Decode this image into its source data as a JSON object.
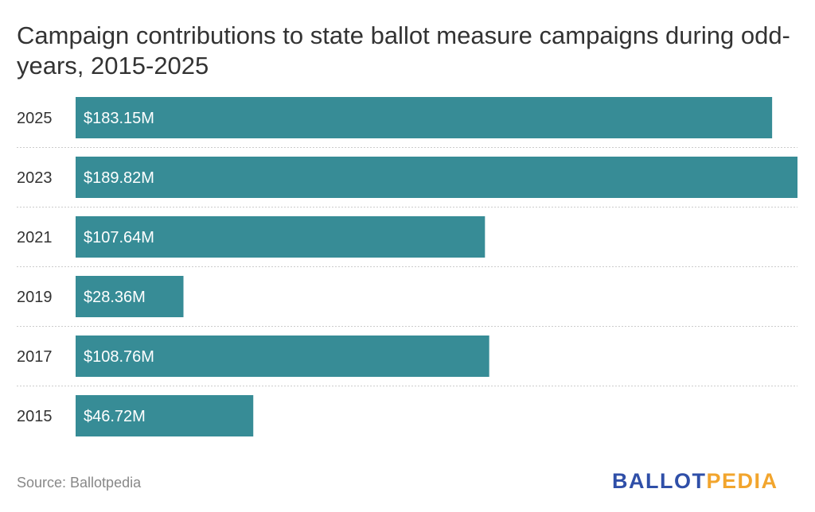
{
  "chart_data": {
    "type": "bar",
    "orientation": "horizontal",
    "title": "Campaign contributions to state ballot measure campaigns during odd-years, 2015-2025",
    "categories": [
      "2025",
      "2023",
      "2021",
      "2019",
      "2017",
      "2015"
    ],
    "values": [
      183.15,
      189.82,
      107.64,
      28.36,
      108.76,
      46.72
    ],
    "value_labels": [
      "$183.15M",
      "$189.82M",
      "$107.64M",
      "$28.36M",
      "$108.76M",
      "$46.72M"
    ],
    "units": "millions USD",
    "xlabel": "",
    "ylabel": "",
    "xlim": [
      0,
      189.82
    ],
    "grid": false,
    "row_separators": "dotted",
    "legend": "none",
    "bar_color": "#378c96"
  },
  "footer": {
    "source": "Source: Ballotpedia",
    "logo_part1": "BALLOT",
    "logo_part2": "PEDIA"
  }
}
